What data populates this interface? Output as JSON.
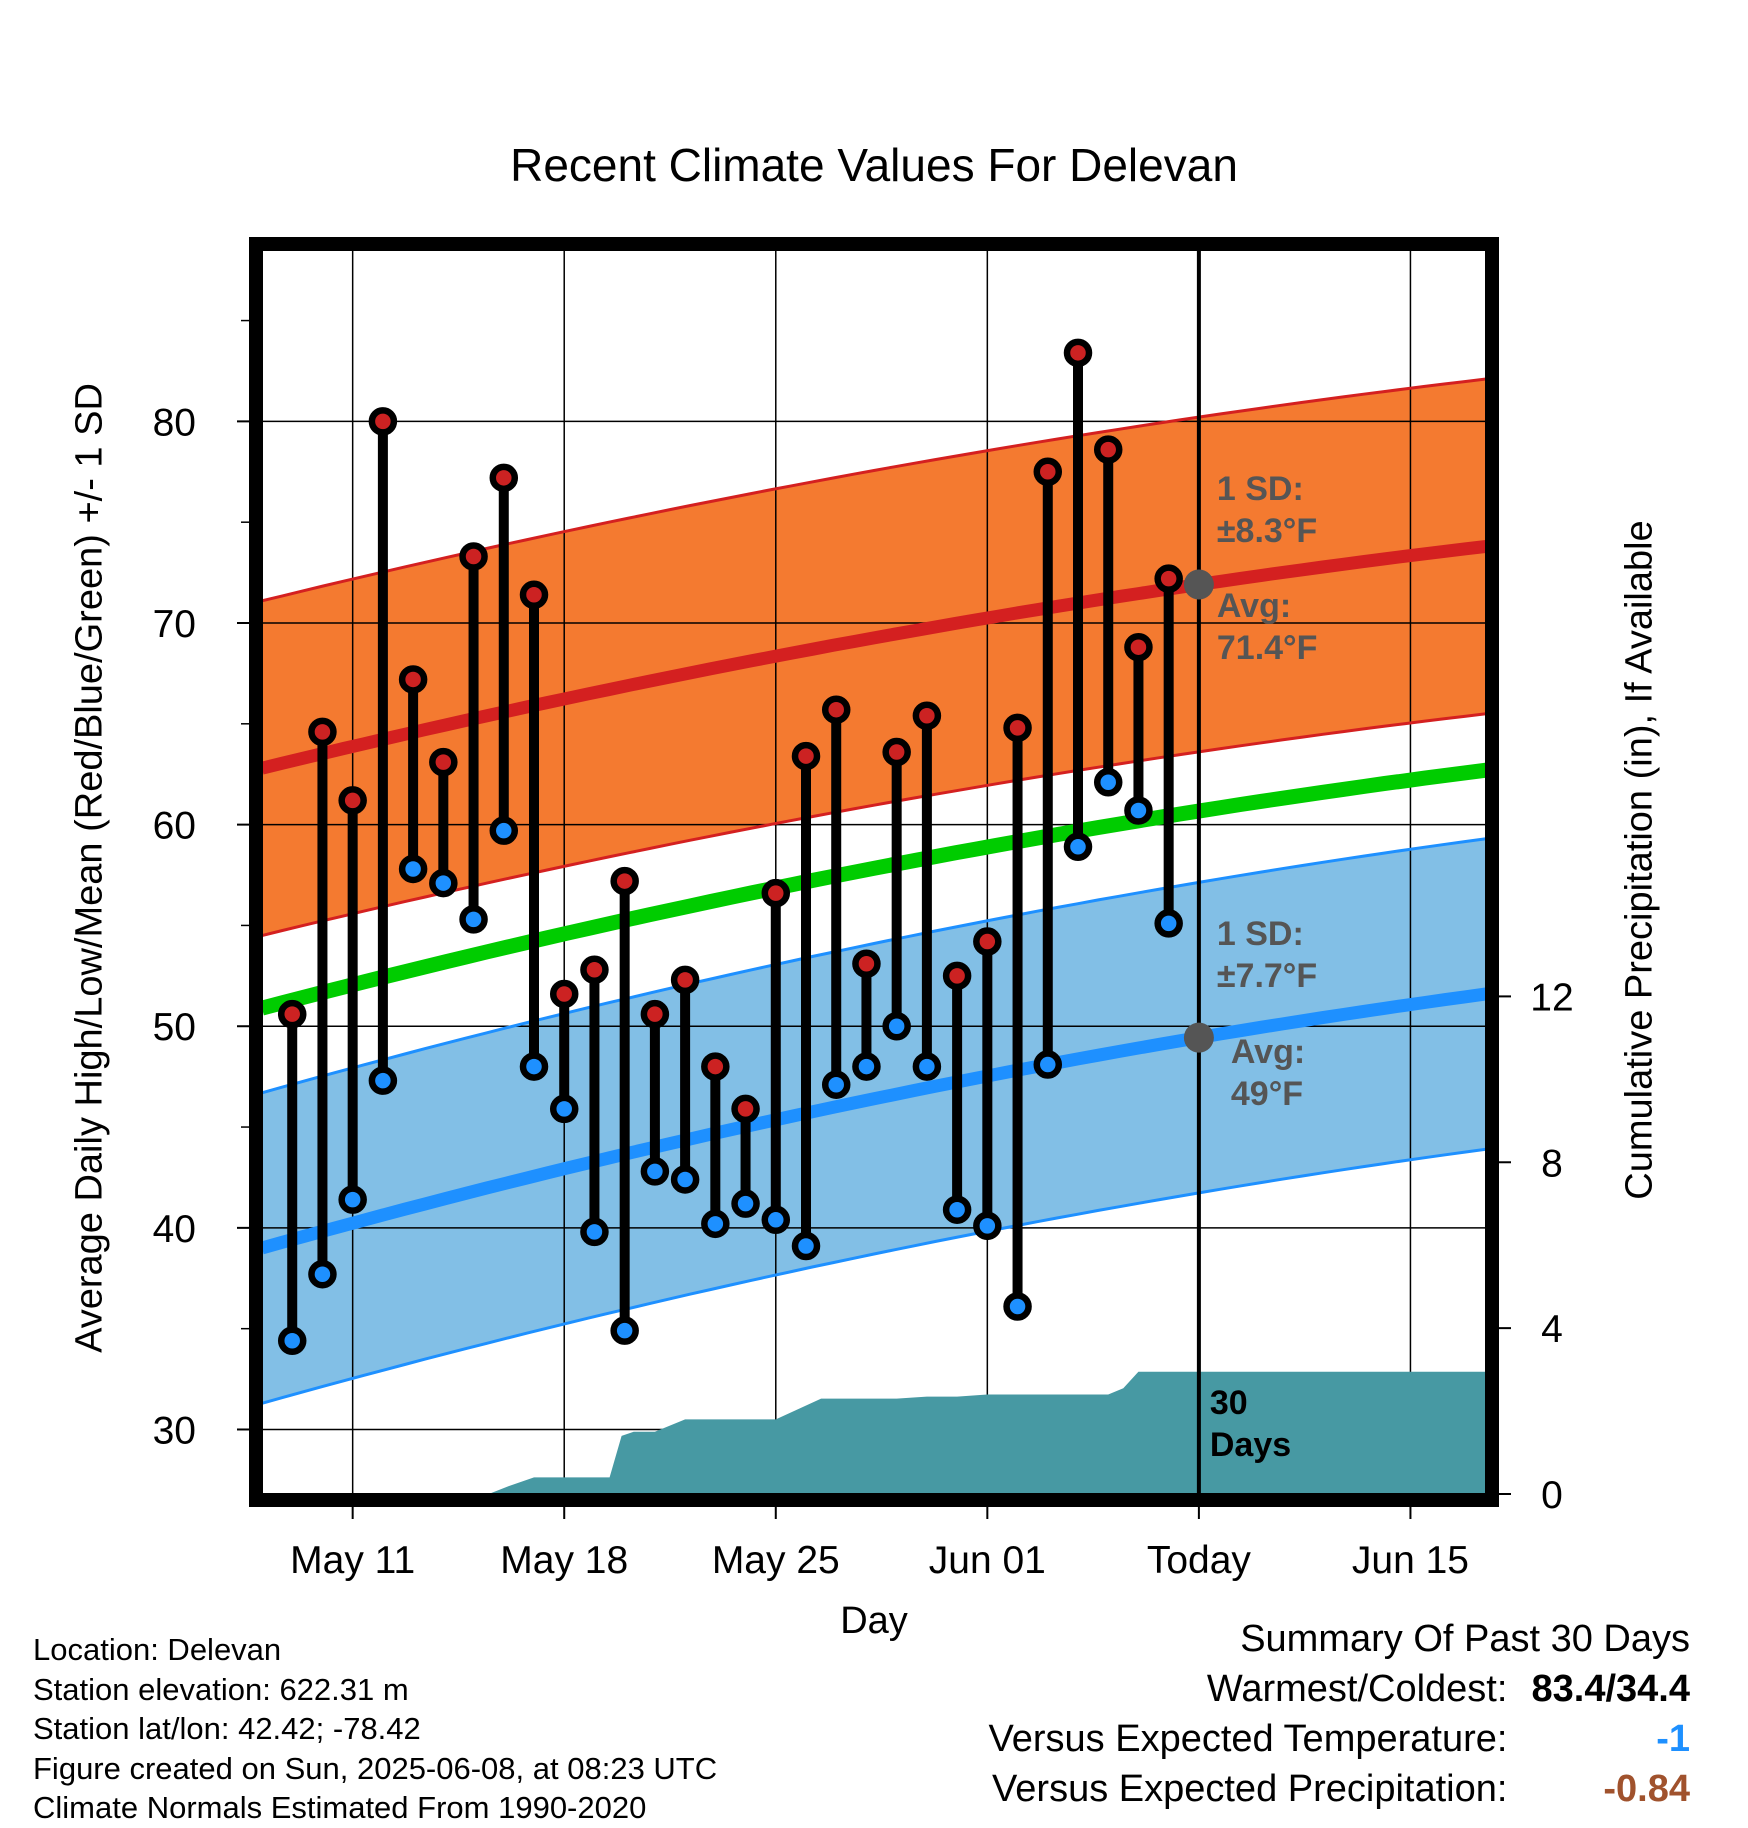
{
  "title": "Recent Climate Values For Delevan",
  "chart_data": {
    "type": "line",
    "title": "Recent Climate Values For Delevan",
    "xlabel": "Day",
    "ylabel": "Average Daily High/Low/Mean (Red/Blue/Green) +/- 1 SD",
    "y2label": "Cumulative Precipitation (in), If Available",
    "x_tick_labels": [
      "May 11",
      "May 18",
      "May 25",
      "Jun 01",
      "Today",
      "Jun 15"
    ],
    "x_tick_days": [
      3,
      10,
      17,
      24,
      31,
      38
    ],
    "xlim": [
      0,
      40.5
    ],
    "ylim": [
      26.8,
      88.5
    ],
    "y_ticks": [
      30,
      40,
      50,
      60,
      70,
      80
    ],
    "y2lim": [
      0,
      30
    ],
    "y2_ticks": [
      0,
      4,
      8,
      12
    ],
    "grid": true,
    "today_day": 31,
    "days": [
      1,
      2,
      3,
      4,
      5,
      6,
      7,
      8,
      9,
      10,
      11,
      12,
      13,
      14,
      15,
      16,
      17,
      18,
      19,
      20,
      21,
      22,
      23,
      24,
      25,
      26,
      27,
      28,
      29,
      30
    ],
    "high": [
      50.6,
      64.6,
      61.2,
      80.0,
      67.2,
      63.1,
      73.3,
      77.2,
      71.4,
      51.6,
      52.8,
      57.2,
      50.6,
      52.3,
      48.0,
      45.9,
      56.6,
      63.4,
      65.7,
      53.1,
      63.6,
      65.4,
      52.5,
      54.2,
      64.8,
      77.5,
      83.4,
      78.6,
      68.8,
      72.2
    ],
    "low": [
      34.4,
      37.7,
      41.4,
      47.3,
      57.8,
      57.1,
      55.3,
      59.7,
      48.0,
      45.9,
      39.8,
      34.9,
      42.8,
      42.4,
      40.2,
      41.2,
      40.4,
      39.1,
      47.1,
      48.0,
      50.0,
      48.0,
      40.9,
      40.1,
      36.1,
      48.1,
      58.9,
      62.1,
      60.7,
      55.1
    ],
    "avg_high": {
      "start": 62.8,
      "end": 73.8
    },
    "avg_low": {
      "start": 39.0,
      "end": 51.6
    },
    "avg_mean": {
      "start": 50.9,
      "end": 62.7
    },
    "high_sd": 8.3,
    "low_sd": 7.7,
    "precip_day": [
      7.5,
      8.2,
      9,
      11.5,
      11.9,
      12.3,
      13,
      14,
      15,
      16,
      17,
      18.5,
      19,
      20,
      21,
      22,
      23,
      24,
      25,
      26,
      27,
      28,
      28.5,
      29,
      29.8,
      40.5
    ],
    "precip_cum": [
      0,
      0.2,
      0.4,
      0.4,
      1.4,
      1.5,
      1.5,
      1.8,
      1.8,
      1.8,
      1.8,
      2.3,
      2.3,
      2.3,
      2.3,
      2.35,
      2.35,
      2.4,
      2.4,
      2.4,
      2.4,
      2.4,
      2.55,
      2.95,
      2.95,
      2.95
    ],
    "annotations": {
      "high_sd_label": "1 SD:",
      "high_sd_value": "±8.3°F",
      "high_avg_label": "Avg:",
      "high_avg_value": "71.4°F",
      "low_sd_label": "1 SD:",
      "low_sd_value": "±7.7°F",
      "low_avg_label": "Avg:",
      "low_avg_value": "49°F",
      "period_line1": "30",
      "period_line2": "Days"
    },
    "colors": {
      "high_band": "#f47a30",
      "high_line": "#d42020",
      "low_band": "#82bfe6",
      "low_line": "#1e90ff",
      "mean_line": "#00cc00",
      "precip": "#4799a3",
      "high_dot": "#cc2222",
      "low_dot": "#1e90ff",
      "avg_dot": "#555555"
    }
  },
  "info": {
    "location": "Location: Delevan",
    "elevation": "Station elevation: 622.31 m",
    "latlon": "Station lat/lon: 42.42; -78.42",
    "created": "Figure created on Sun, 2025-06-08, at 08:23 UTC",
    "normals": "Climate Normals Estimated From 1990-2020"
  },
  "summary": {
    "heading": "Summary Of Past 30 Days",
    "warm_cold_label": "Warmest/Coldest:",
    "warm_cold_value": "83.4/34.4",
    "temp_label": "Versus Expected Temperature:",
    "temp_value": "-1",
    "precip_label": "Versus Expected Precipitation:",
    "precip_value": "-0.84"
  }
}
